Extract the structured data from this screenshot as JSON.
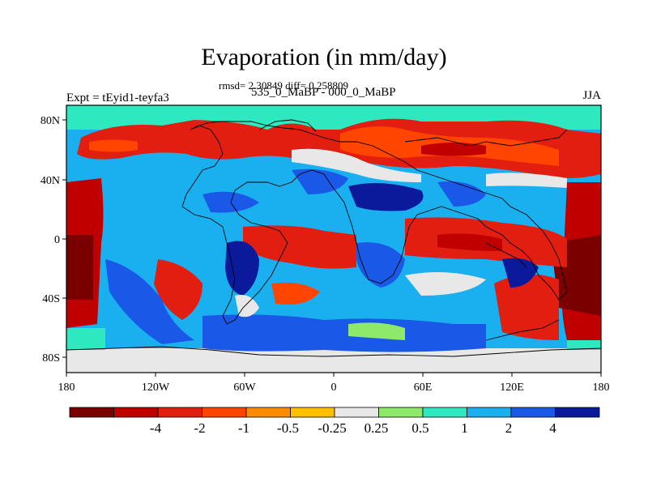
{
  "title": "Evaporation (in mm/day)",
  "stats": "rmsd= 2.30849 diff= 0.258809",
  "experiment": "Expt = tEyid1-teyfa3",
  "difference": "535_0_MaBP - 000_0_MaBP",
  "season": "JJA",
  "lat_ticks": [
    "80N",
    "40N",
    "0",
    "40S",
    "80S"
  ],
  "lon_ticks": [
    "180",
    "120W",
    "60W",
    "0",
    "60E",
    "120E",
    "180"
  ],
  "colorbar": {
    "colors": [
      "#7a0000",
      "#c00000",
      "#e21e10",
      "#ff4500",
      "#ff8c00",
      "#ffc000",
      "#e8e8e8",
      "#8ee86a",
      "#2ee8c0",
      "#1ab0f0",
      "#1a58e8",
      "#0a1a9a"
    ],
    "labels": [
      "-4",
      "-2",
      "-1",
      "-0.5",
      "-0.25",
      "0.25",
      "0.5",
      "1",
      "2",
      "4"
    ]
  }
}
